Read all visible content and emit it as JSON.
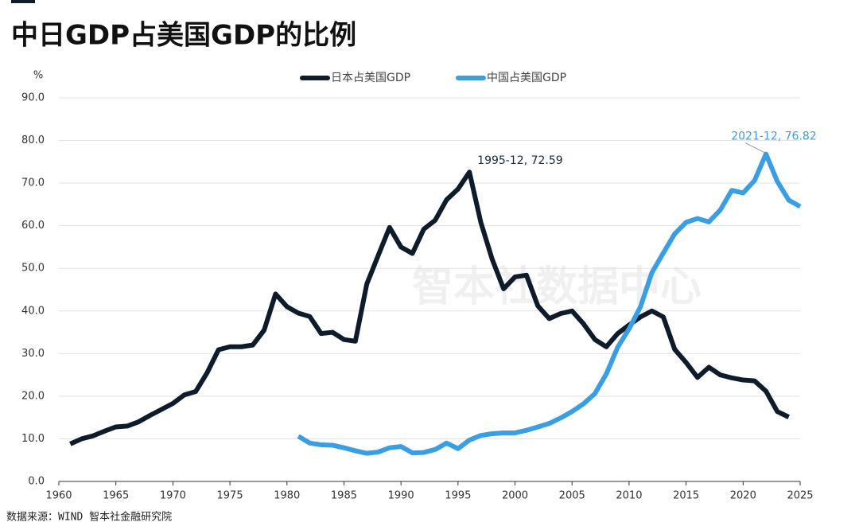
{
  "chart_data": {
    "type": "line",
    "title": "中日GDP占美国GDP的比例",
    "y_unit": "%",
    "source": "数据来源：WIND 智本社金融研究院",
    "watermark": "智本社数据中心",
    "grid": true,
    "xlim": [
      1960,
      2025
    ],
    "xticks": [
      1960,
      1965,
      1970,
      1975,
      1980,
      1985,
      1990,
      1995,
      2000,
      2005,
      2010,
      2015,
      2020,
      2025
    ],
    "ylim": [
      0,
      90
    ],
    "yticks": [
      {
        "value": 0,
        "label": "0.0"
      },
      {
        "value": 10,
        "label": "10.0"
      },
      {
        "value": 20,
        "label": "20.0"
      },
      {
        "value": 30,
        "label": "30.0"
      },
      {
        "value": 40,
        "label": "40.0"
      },
      {
        "value": 50,
        "label": "50.0"
      },
      {
        "value": 60,
        "label": "60.0"
      },
      {
        "value": 70,
        "label": "70.0"
      },
      {
        "value": 80,
        "label": "80.0"
      },
      {
        "value": 90,
        "label": "90.0"
      }
    ],
    "series": [
      {
        "name": "日本占美国GDP",
        "color": "#0d1b2a",
        "x": [
          1961,
          1962,
          1963,
          1964,
          1965,
          1966,
          1967,
          1968,
          1969,
          1970,
          1971,
          1972,
          1973,
          1974,
          1975,
          1976,
          1977,
          1978,
          1979,
          1980,
          1981,
          1982,
          1983,
          1984,
          1985,
          1986,
          1987,
          1988,
          1989,
          1990,
          1991,
          1992,
          1993,
          1994,
          1995,
          1996,
          1997,
          1998,
          1999,
          2000,
          2001,
          2002,
          2003,
          2004,
          2005,
          2006,
          2007,
          2008,
          2009,
          2010,
          2011,
          2012,
          2013,
          2014,
          2015,
          2016,
          2017,
          2018,
          2019,
          2020,
          2021,
          2022,
          2023,
          2024
        ],
        "values": [
          8.8,
          10.0,
          10.7,
          11.8,
          12.8,
          13.0,
          14.0,
          15.5,
          16.9,
          18.3,
          20.3,
          21.1,
          25.5,
          30.9,
          31.6,
          31.6,
          32.0,
          35.5,
          44.0,
          41.0,
          39.5,
          38.7,
          34.7,
          35.0,
          33.3,
          32.9,
          46.3,
          53.0,
          59.6,
          55.0,
          53.5,
          59.2,
          61.3,
          66.1,
          68.6,
          72.59,
          60.8,
          52.1,
          45.2,
          48.0,
          48.4,
          41.2,
          38.2,
          39.4,
          40.0,
          37.0,
          33.3,
          31.6,
          34.7,
          36.7,
          38.6,
          40.0,
          38.6,
          31.0,
          27.9,
          24.4,
          26.8,
          25.0,
          24.3,
          23.8,
          23.6,
          21.2,
          16.4,
          15.1
        ]
      },
      {
        "name": "中国占美国GDP",
        "color": "#3a9ee4",
        "x": [
          1981,
          1982,
          1983,
          1984,
          1985,
          1986,
          1987,
          1988,
          1989,
          1990,
          1991,
          1992,
          1993,
          1994,
          1995,
          1996,
          1997,
          1998,
          1999,
          2000,
          2001,
          2002,
          2003,
          2004,
          2005,
          2006,
          2007,
          2008,
          2009,
          2010,
          2011,
          2012,
          2013,
          2014,
          2015,
          2016,
          2017,
          2018,
          2019,
          2020,
          2021,
          2022,
          2023,
          2024,
          2025
        ],
        "values": [
          10.6,
          9.0,
          8.6,
          8.5,
          7.9,
          7.2,
          6.6,
          6.9,
          7.9,
          8.2,
          6.7,
          6.8,
          7.5,
          9.0,
          7.7,
          9.7,
          10.8,
          11.2,
          11.4,
          11.4,
          12.0,
          12.8,
          13.6,
          14.9,
          16.4,
          18.2,
          20.6,
          25.2,
          31.5,
          35.8,
          41.0,
          49.0,
          53.6,
          58.1,
          60.8,
          61.7,
          60.9,
          63.7,
          68.3,
          67.7,
          70.6,
          76.82,
          70.4,
          66.0,
          64.5
        ]
      }
    ],
    "annotations": [
      {
        "text": "1995-12, 72.59",
        "x": 1996,
        "y": 72.59,
        "color": "#1a2a3a"
      },
      {
        "text": "2021-12, 76.82",
        "x": 2022,
        "y": 76.82,
        "color": "#3a9ee4"
      }
    ]
  }
}
